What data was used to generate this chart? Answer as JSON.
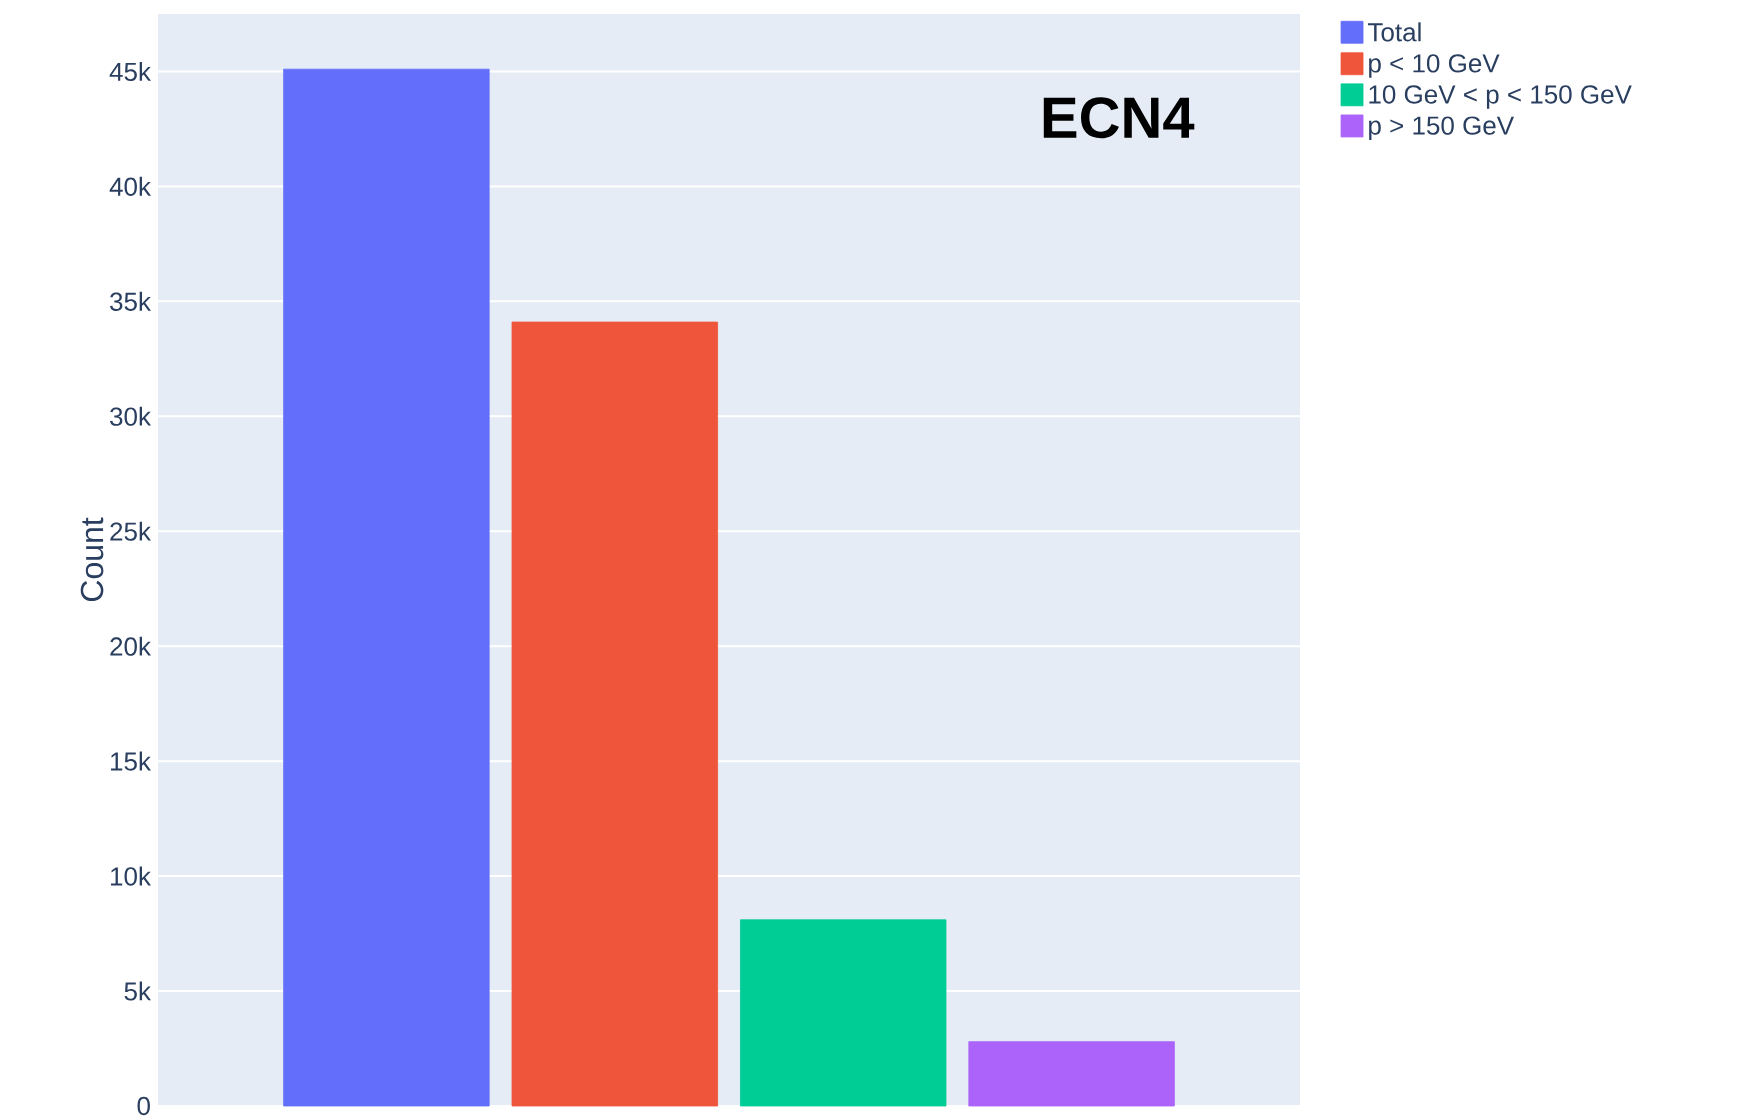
{
  "chart_data": {
    "type": "bar",
    "categories": [
      null
    ],
    "ylabel": "Count",
    "annotations": [
      "ECN4"
    ],
    "series": [
      {
        "name": "Total",
        "color": "#636efa",
        "values": [
          45100
        ]
      },
      {
        "name": "p < 10 GeV",
        "color": "#ef553b",
        "values": [
          34100
        ]
      },
      {
        "name": "10 GeV < p < 150 GeV",
        "color": "#00cc96",
        "values": [
          8100
        ]
      },
      {
        "name": "p > 150 GeV",
        "color": "#ab63fa",
        "values": [
          2800
        ]
      }
    ],
    "ylim": [
      0,
      47500
    ],
    "yticks": [
      0,
      {
        "value": 5000,
        "label": "5k"
      },
      {
        "value": 10000,
        "label": "10k"
      },
      {
        "value": 15000,
        "label": "15k"
      },
      {
        "value": 20000,
        "label": "20k"
      },
      {
        "value": 25000,
        "label": "25k"
      },
      {
        "value": 30000,
        "label": "30k"
      },
      {
        "value": 35000,
        "label": "35k"
      },
      {
        "value": 40000,
        "label": "40k"
      },
      {
        "value": 45000,
        "label": "45k"
      }
    ],
    "grid": "y",
    "legend": "top right"
  }
}
